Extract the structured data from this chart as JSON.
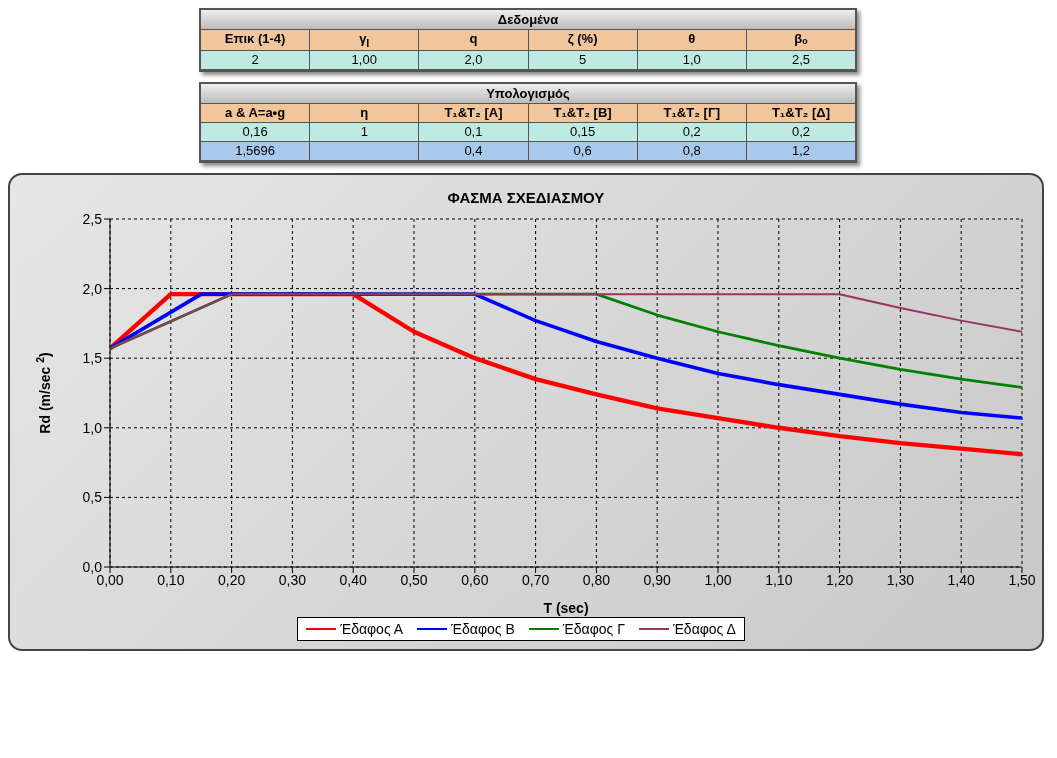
{
  "chart_data": [
    {
      "type": "other",
      "title": "Δεδομένα",
      "annotations": [
        "Επικ (1-4)",
        "γ$_{I}$",
        "q",
        "ζ (%)",
        "θ",
        "βₒ",
        "2",
        "1,00",
        "2,0",
        "5",
        "1,0",
        "2,5"
      ]
    },
    {
      "type": "other",
      "title": "Υπολογισμός",
      "annotations": [
        "a & A=a•g",
        "η",
        "T₁&T₂ [Α]",
        "T₁&T₂ [Β]",
        "T₁&T₂ [Γ]",
        "T₁&T₂ [Δ]",
        "0,16",
        "1",
        "0,1",
        "0,15",
        "0,2",
        "0,2",
        "1,5696",
        null,
        "0,4",
        "0,6",
        "0,8",
        "1,2"
      ]
    },
    {
      "type": "line",
      "title": "ΦΑΣΜΑ ΣΧΕΔΙΑΣΜΟΥ",
      "xlabel": "T (sec)",
      "ylabel": "Rd (m/sec $^{2}$)",
      "xlim": [
        0,
        1.5
      ],
      "ylim": [
        0,
        2.5
      ],
      "xticks": [
        {
          "value": 0,
          "label": "0,00"
        },
        {
          "value": 0.1,
          "label": "0,10"
        },
        {
          "value": 0.2,
          "label": "0,20"
        },
        {
          "value": 0.3,
          "label": "0,30"
        },
        {
          "value": 0.4,
          "label": "0,40"
        },
        {
          "value": 0.5,
          "label": "0,50"
        },
        {
          "value": 0.6,
          "label": "0,60"
        },
        {
          "value": 0.7,
          "label": "0,70"
        },
        {
          "value": 0.8,
          "label": "0,80"
        },
        {
          "value": 0.9,
          "label": "0,90"
        },
        {
          "value": 1,
          "label": "1,00"
        },
        {
          "value": 1.1,
          "label": "1,10"
        },
        {
          "value": 1.2,
          "label": "1,20"
        },
        {
          "value": 1.3,
          "label": "1,30"
        },
        {
          "value": 1.4,
          "label": "1,40"
        },
        {
          "value": 1.5,
          "label": "1,50"
        }
      ],
      "yticks": [
        {
          "value": 0,
          "label": "0,0"
        },
        {
          "value": 0.5,
          "label": "0,5"
        },
        {
          "value": 1,
          "label": "1,0"
        },
        {
          "value": 1.5,
          "label": "1,5"
        },
        {
          "value": 2,
          "label": "2,0"
        },
        {
          "value": 2.5,
          "label": "2,5"
        }
      ],
      "grid": true,
      "legend": "bottom",
      "marker": "none",
      "line_style": "solid",
      "series": [
        {
          "name": "Έδαφος Α",
          "color": "#ff0000",
          "x": [
            0,
            0.1,
            0.4,
            0.5,
            0.6,
            0.7,
            0.8,
            0.9,
            1.0,
            1.1,
            1.2,
            1.3,
            1.4,
            1.5
          ],
          "values": [
            1.57,
            1.96,
            1.96,
            1.69,
            1.5,
            1.35,
            1.24,
            1.14,
            1.07,
            1.0,
            0.94,
            0.89,
            0.85,
            0.81
          ]
        },
        {
          "name": "Έδαφος Β",
          "color": "#0000ff",
          "x": [
            0,
            0.15,
            0.6,
            0.7,
            0.8,
            0.9,
            1.0,
            1.1,
            1.2,
            1.3,
            1.4,
            1.5
          ],
          "values": [
            1.57,
            1.96,
            1.96,
            1.77,
            1.62,
            1.5,
            1.39,
            1.31,
            1.24,
            1.17,
            1.11,
            1.07
          ]
        },
        {
          "name": "Έδαφος Γ",
          "color": "#008000",
          "x": [
            0,
            0.2,
            0.8,
            0.9,
            1.0,
            1.1,
            1.2,
            1.3,
            1.4,
            1.5
          ],
          "values": [
            1.57,
            1.96,
            1.96,
            1.81,
            1.69,
            1.59,
            1.5,
            1.42,
            1.35,
            1.29
          ]
        },
        {
          "name": "Έδαφος Δ",
          "color": "#993366",
          "x": [
            0,
            0.2,
            1.2,
            1.3,
            1.4,
            1.5
          ],
          "values": [
            1.57,
            1.96,
            1.96,
            1.86,
            1.77,
            1.69
          ]
        }
      ]
    }
  ]
}
